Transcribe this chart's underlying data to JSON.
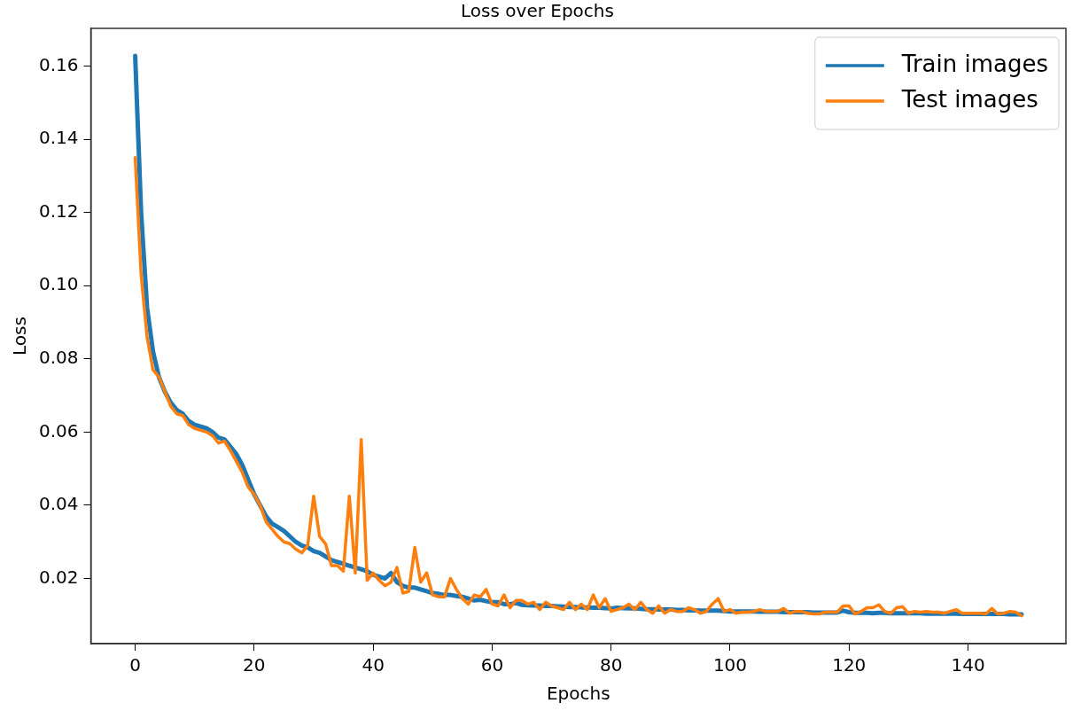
{
  "chart_data": {
    "type": "line",
    "title": "Loss over Epochs",
    "xlabel": "Epochs",
    "ylabel": "Loss",
    "x": [
      0,
      1,
      2,
      3,
      4,
      5,
      6,
      7,
      8,
      9,
      10,
      11,
      12,
      13,
      14,
      15,
      16,
      17,
      18,
      19,
      20,
      21,
      22,
      23,
      24,
      25,
      26,
      27,
      28,
      29,
      30,
      31,
      32,
      33,
      34,
      35,
      36,
      37,
      38,
      39,
      40,
      41,
      42,
      43,
      44,
      45,
      46,
      47,
      48,
      49,
      50,
      51,
      52,
      53,
      54,
      55,
      56,
      57,
      58,
      59,
      60,
      61,
      62,
      63,
      64,
      65,
      66,
      67,
      68,
      69,
      70,
      71,
      72,
      73,
      74,
      75,
      76,
      77,
      78,
      79,
      80,
      81,
      82,
      83,
      84,
      85,
      86,
      87,
      88,
      89,
      90,
      91,
      92,
      93,
      94,
      95,
      96,
      97,
      98,
      99,
      100,
      101,
      102,
      103,
      104,
      105,
      106,
      107,
      108,
      109,
      110,
      111,
      112,
      113,
      114,
      115,
      116,
      117,
      118,
      119,
      120,
      121,
      122,
      123,
      124,
      125,
      126,
      127,
      128,
      129,
      130,
      131,
      132,
      133,
      134,
      135,
      136,
      137,
      138,
      139,
      140,
      141,
      142,
      143,
      144,
      145,
      146,
      147,
      148,
      149
    ],
    "series": [
      {
        "name": "Train images",
        "color": "#1f77b4",
        "values": [
          0.1628,
          0.12,
          0.094,
          0.082,
          0.075,
          0.071,
          0.068,
          0.066,
          0.065,
          0.063,
          0.062,
          0.0615,
          0.061,
          0.06,
          0.0585,
          0.058,
          0.056,
          0.054,
          0.051,
          0.047,
          0.043,
          0.04,
          0.037,
          0.035,
          0.034,
          0.033,
          0.0315,
          0.03,
          0.029,
          0.0285,
          0.0275,
          0.027,
          0.026,
          0.025,
          0.0245,
          0.024,
          0.0235,
          0.023,
          0.0225,
          0.022,
          0.021,
          0.0205,
          0.02,
          0.0215,
          0.019,
          0.018,
          0.0175,
          0.0175,
          0.017,
          0.0165,
          0.016,
          0.0158,
          0.0155,
          0.0155,
          0.0152,
          0.015,
          0.0145,
          0.014,
          0.0142,
          0.0138,
          0.0135,
          0.0135,
          0.013,
          0.013,
          0.0133,
          0.0128,
          0.0127,
          0.0126,
          0.0126,
          0.0125,
          0.0125,
          0.0124,
          0.0123,
          0.0122,
          0.0122,
          0.0121,
          0.0121,
          0.012,
          0.012,
          0.0119,
          0.0118,
          0.012,
          0.0119,
          0.0118,
          0.0118,
          0.0117,
          0.0116,
          0.0116,
          0.0115,
          0.0115,
          0.0115,
          0.0114,
          0.0114,
          0.0113,
          0.0113,
          0.0112,
          0.0112,
          0.0112,
          0.0112,
          0.0111,
          0.011,
          0.011,
          0.011,
          0.011,
          0.011,
          0.0109,
          0.0109,
          0.0109,
          0.0109,
          0.0108,
          0.0108,
          0.0108,
          0.0108,
          0.0108,
          0.0107,
          0.0107,
          0.0107,
          0.0107,
          0.0107,
          0.0112,
          0.0108,
          0.0106,
          0.0106,
          0.0106,
          0.0105,
          0.0106,
          0.0106,
          0.0105,
          0.0105,
          0.0105,
          0.0105,
          0.0105,
          0.0105,
          0.0104,
          0.0104,
          0.0104,
          0.0104,
          0.0104,
          0.0104,
          0.0103,
          0.0103,
          0.0103,
          0.0103,
          0.0103,
          0.0103,
          0.0103,
          0.0103,
          0.0102,
          0.0102,
          0.0102
        ]
      },
      {
        "name": "Test images",
        "color": "#ff7f0e",
        "values": [
          0.135,
          0.103,
          0.086,
          0.077,
          0.075,
          0.071,
          0.067,
          0.065,
          0.0645,
          0.062,
          0.061,
          0.0605,
          0.06,
          0.059,
          0.057,
          0.0575,
          0.055,
          0.052,
          0.049,
          0.045,
          0.043,
          0.04,
          0.0355,
          0.0335,
          0.0315,
          0.03,
          0.0295,
          0.028,
          0.027,
          0.029,
          0.0425,
          0.0315,
          0.0295,
          0.0235,
          0.0235,
          0.022,
          0.0425,
          0.0215,
          0.058,
          0.0195,
          0.0215,
          0.0195,
          0.018,
          0.019,
          0.023,
          0.016,
          0.0165,
          0.0285,
          0.019,
          0.0215,
          0.0155,
          0.015,
          0.015,
          0.02,
          0.017,
          0.0145,
          0.013,
          0.0155,
          0.015,
          0.017,
          0.013,
          0.0125,
          0.0155,
          0.012,
          0.014,
          0.014,
          0.013,
          0.0135,
          0.0115,
          0.0135,
          0.0125,
          0.012,
          0.0115,
          0.0135,
          0.0115,
          0.013,
          0.0115,
          0.0155,
          0.012,
          0.0145,
          0.011,
          0.0115,
          0.012,
          0.013,
          0.0115,
          0.0135,
          0.0115,
          0.0105,
          0.0125,
          0.0105,
          0.0115,
          0.011,
          0.011,
          0.012,
          0.0115,
          0.0105,
          0.011,
          0.013,
          0.0145,
          0.011,
          0.0115,
          0.0105,
          0.0108,
          0.0108,
          0.011,
          0.0115,
          0.011,
          0.011,
          0.011,
          0.0118,
          0.0105,
          0.011,
          0.011,
          0.0105,
          0.0103,
          0.0103,
          0.0108,
          0.0108,
          0.0108,
          0.0125,
          0.0125,
          0.0103,
          0.011,
          0.012,
          0.012,
          0.0128,
          0.011,
          0.0105,
          0.012,
          0.0123,
          0.0105,
          0.011,
          0.0108,
          0.011,
          0.0108,
          0.0108,
          0.0105,
          0.011,
          0.0115,
          0.0105,
          0.0105,
          0.0105,
          0.0105,
          0.0103,
          0.0118,
          0.0103,
          0.0105,
          0.011,
          0.0108,
          0.0098
        ]
      }
    ],
    "xlim": [
      -7.45,
      156.45
    ],
    "xticks": [
      0,
      20,
      40,
      60,
      80,
      100,
      120,
      140
    ],
    "ylim": [
      0.0022,
      0.1703
    ],
    "yticks": [
      0.02,
      0.04,
      0.06,
      0.08,
      {
        "value": 0.1,
        "label": "0.10"
      },
      0.12,
      0.14,
      0.16
    ],
    "grid": false,
    "legend": "top right",
    "marker": "none",
    "line_style": "solid"
  }
}
